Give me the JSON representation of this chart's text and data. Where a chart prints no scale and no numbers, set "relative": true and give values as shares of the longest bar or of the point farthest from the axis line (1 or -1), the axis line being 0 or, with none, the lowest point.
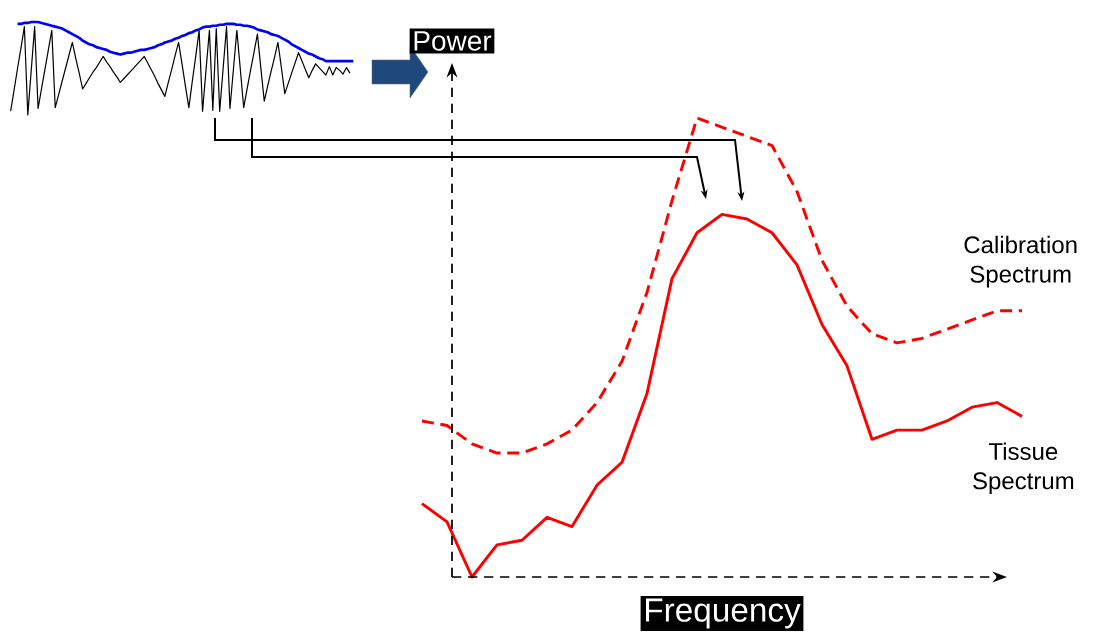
{
  "chart_data": [
    {
      "type": "line",
      "relative": true,
      "categories": [
        null,
        null,
        null,
        null,
        null,
        null,
        null,
        null,
        null,
        null,
        null,
        null,
        null,
        null,
        null,
        null,
        null,
        null,
        null,
        null,
        null,
        null,
        null,
        null,
        null,
        null,
        null,
        null,
        null,
        null,
        null,
        null,
        null,
        null,
        null,
        null,
        null,
        null,
        null,
        null,
        null,
        null,
        null,
        null,
        null,
        null,
        null,
        null,
        null,
        null,
        null,
        null,
        null,
        null,
        null,
        null,
        null,
        null,
        null,
        null,
        null,
        null,
        null,
        null,
        null,
        null,
        null,
        null,
        null,
        null,
        null,
        null,
        null,
        null,
        null,
        null,
        null,
        null,
        null,
        null,
        null,
        null,
        null,
        null,
        null,
        null,
        null,
        null,
        null,
        null,
        null,
        null,
        null,
        null,
        null,
        null,
        null,
        null,
        null,
        null,
        null
      ],
      "series": [
        {
          "color": "#000000",
          "values": [
            0.04,
            0.27,
            0.5,
            0.72,
            0.95,
            0.0,
            0.48,
            0.95,
            0.07,
            0.28,
            0.49,
            0.7,
            0.91,
            0.08,
            0.22,
            0.36,
            0.5,
            0.64,
            0.78,
            0.61,
            0.45,
            0.28,
            0.34,
            0.4,
            0.46,
            0.51,
            0.57,
            0.63,
            0.57,
            0.52,
            0.46,
            0.41,
            0.35,
            0.39,
            0.43,
            0.47,
            0.51,
            0.55,
            0.59,
            0.63,
            0.56,
            0.49,
            0.42,
            0.34,
            0.27,
            0.2,
            0.35,
            0.49,
            0.64,
            0.78,
            0.55,
            0.31,
            0.08,
            0.36,
            0.63,
            0.91,
            0.04,
            0.48,
            0.91,
            0.05,
            0.93,
            0.04,
            0.5,
            0.95,
            0.07,
            0.49,
            0.91,
            0.5,
            0.08,
            0.28,
            0.48,
            0.67,
            0.87,
            0.51,
            0.15,
            0.31,
            0.47,
            0.62,
            0.78,
            0.51,
            0.23,
            0.34,
            0.45,
            0.56,
            0.67,
            0.58,
            0.49,
            0.4,
            0.48,
            0.55,
            0.51,
            0.47,
            0.43,
            0.52,
            0.43,
            0.51,
            0.48,
            0.44,
            0.51,
            0.45,
            null
          ]
        },
        {
          "color": "#0000ff",
          "values": [
            null,
            null,
            0.98,
            0.98,
            0.99,
            0.99,
            1.0,
            1.0,
            1.0,
            0.99,
            0.98,
            0.97,
            0.96,
            0.95,
            0.94,
            0.93,
            0.91,
            0.89,
            0.87,
            0.85,
            0.83,
            0.8,
            0.78,
            0.76,
            0.75,
            0.73,
            0.72,
            0.71,
            0.7,
            0.68,
            0.67,
            0.66,
            0.65,
            0.66,
            0.67,
            0.67,
            0.68,
            0.69,
            0.7,
            0.7,
            0.71,
            0.72,
            0.73,
            0.75,
            0.76,
            0.78,
            0.79,
            0.8,
            0.82,
            0.83,
            0.85,
            0.86,
            0.88,
            0.89,
            0.91,
            0.92,
            0.94,
            0.95,
            0.95,
            0.96,
            0.96,
            0.97,
            0.97,
            0.98,
            0.98,
            0.98,
            0.97,
            0.97,
            0.96,
            0.96,
            0.95,
            0.94,
            0.92,
            0.91,
            0.9,
            0.89,
            0.87,
            0.86,
            0.85,
            0.83,
            0.81,
            0.79,
            0.76,
            0.74,
            0.72,
            0.7,
            0.68,
            0.66,
            0.65,
            0.63,
            0.61,
            0.6,
            0.58,
            0.58,
            0.58,
            0.58,
            0.58,
            0.58,
            0.58,
            0.58,
            0.58
          ]
        }
      ]
    },
    {
      "type": "line",
      "relative": true,
      "xlabel": "Frequency",
      "ylabel": "Power",
      "categories": [
        null,
        null,
        null,
        null,
        null,
        null,
        null,
        null,
        null,
        null,
        null,
        null,
        null,
        null,
        null,
        null,
        null,
        null,
        null,
        null,
        null,
        null,
        null,
        null,
        null
      ],
      "series": [
        {
          "name": "Calibration Spectrum",
          "color": "#ff0000",
          "line_style": "dashed",
          "values": [
            0.34,
            0.33,
            0.29,
            0.27,
            0.27,
            0.29,
            0.32,
            0.38,
            0.47,
            0.62,
            0.82,
            1.0,
            0.98,
            0.96,
            0.94,
            0.84,
            0.69,
            0.59,
            0.53,
            0.51,
            0.52,
            0.54,
            0.56,
            0.58,
            0.58
          ]
        },
        {
          "name": "Tissue Spectrum",
          "color": "#ff0000",
          "line_style": "solid",
          "values": [
            0.16,
            0.12,
            0.0,
            0.07,
            0.08,
            0.13,
            0.11,
            0.2,
            0.25,
            0.4,
            0.65,
            0.75,
            0.79,
            0.78,
            0.75,
            0.68,
            0.55,
            0.46,
            0.3,
            0.32,
            0.32,
            0.34,
            0.37,
            0.38,
            0.35
          ]
        }
      ]
    }
  ]
}
